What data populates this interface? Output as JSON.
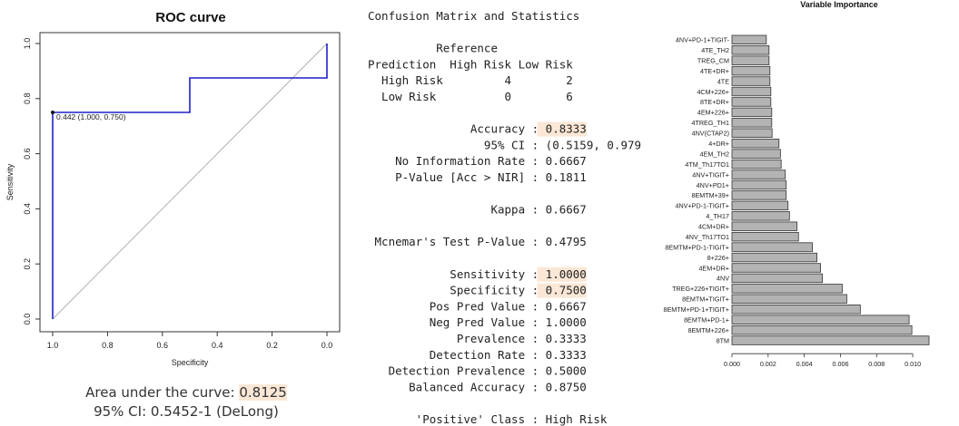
{
  "chart_data": [
    {
      "type": "line",
      "title": "ROC curve",
      "xlabel": "Specificity",
      "ylabel": "Sensitivity",
      "xlim": [
        1.0,
        0.0
      ],
      "ylim": [
        0.0,
        1.0
      ],
      "x_reversed": true,
      "xticks": [
        "1.0",
        "0.8",
        "0.6",
        "0.4",
        "0.2",
        "0.0"
      ],
      "yticks": [
        "0.0",
        "0.2",
        "0.4",
        "0.6",
        "0.8",
        "1.0"
      ],
      "xtick_values": [
        1.0,
        0.8,
        0.6,
        0.4,
        0.2,
        0.0
      ],
      "ytick_values": [
        0.0,
        0.2,
        0.4,
        0.6,
        0.8,
        1.0
      ],
      "series": [
        {
          "color": "#1f1fcc",
          "points": [
            [
              1.0,
              0.0
            ],
            [
              1.0,
              0.75
            ],
            [
              0.5,
              0.75
            ],
            [
              0.5,
              0.875
            ],
            [
              0.0,
              0.875
            ],
            [
              0.0,
              1.0
            ]
          ]
        }
      ],
      "reference_line": [
        [
          1.0,
          0.0
        ],
        [
          0.0,
          1.0
        ]
      ],
      "annotation": {
        "text": "0.442 (1.000, 0.750)",
        "x": 1.0,
        "y": 0.75
      },
      "grid": false
    },
    {
      "type": "bar",
      "orientation": "horizontal",
      "title": "Variable Importance",
      "bar_color": "#b3b3b3",
      "xlim": [
        0,
        0.011
      ],
      "xticks": [
        "0.000",
        "0.002",
        "0.004",
        "0.006",
        "0.008",
        "0.010"
      ],
      "xtick_values": [
        0.0,
        0.002,
        0.004,
        0.006,
        0.008,
        0.01
      ],
      "categories": [
        "4NV+PD-1+TIGIT-",
        "4TE_TH2",
        "TREG_CM",
        "4TE+DR+",
        "4TE",
        "4CM+226+",
        "8TE+DR+",
        "4EM+226+",
        "4TREG_TH1",
        "4NV(CTAP2)",
        "4+DR+",
        "4EM_TH2",
        "4TM_Th17TO1",
        "4NV+TIGIT+",
        "4NV+PD1+",
        "8EMTM+39+",
        "4NV+PD-1-TIGIT+",
        "4_TH17",
        "4CM+DR+",
        "4NV_Th17TO1",
        "8EMTM+PD-1-TIGIT+",
        "8+226+",
        "4EM+DR+",
        "4NV",
        "TREG+226+TIGIT+",
        "8EMTM+TIGIT+",
        "8EMTM+PD-1+TIGIT+",
        "8EMTM+PD-1+",
        "8EMTM+226+",
        "8TM"
      ],
      "values": [
        0.0019,
        0.00205,
        0.00205,
        0.0021,
        0.0021,
        0.00215,
        0.00215,
        0.0022,
        0.0022,
        0.00222,
        0.0026,
        0.00268,
        0.00272,
        0.00295,
        0.003,
        0.003,
        0.0031,
        0.00318,
        0.0036,
        0.00368,
        0.00445,
        0.0047,
        0.0049,
        0.005,
        0.0061,
        0.00635,
        0.0071,
        0.0098,
        0.00995,
        0.0109
      ]
    }
  ],
  "stats": {
    "lines": [
      {
        "text": "Confusion Matrix and Statistics"
      },
      {
        "text": ""
      },
      {
        "text": "          Reference"
      },
      {
        "text": "Prediction  High Risk Low Risk"
      },
      {
        "text": "  High Risk         4        2"
      },
      {
        "text": "  Low Risk          0        6"
      },
      {
        "text": ""
      },
      {
        "text": "               Accuracy : 0.8333",
        "hl": true,
        "hl_start": 25
      },
      {
        "text": "                 95% CI : (0.5159, 0.979"
      },
      {
        "text": "    No Information Rate : 0.6667"
      },
      {
        "text": "    P-Value [Acc > NIR] : 0.1811"
      },
      {
        "text": ""
      },
      {
        "text": "                  Kappa : 0.6667"
      },
      {
        "text": ""
      },
      {
        "text": " Mcnemar's Test P-Value : 0.4795"
      },
      {
        "text": ""
      },
      {
        "text": "            Sensitivity : 1.0000",
        "hl": true,
        "hl_start": 25
      },
      {
        "text": "            Specificity : 0.7500",
        "hl": true,
        "hl_start": 25
      },
      {
        "text": "         Pos Pred Value : 0.6667"
      },
      {
        "text": "         Neg Pred Value : 1.0000"
      },
      {
        "text": "             Prevalence : 0.3333"
      },
      {
        "text": "         Detection Rate : 0.3333"
      },
      {
        "text": "   Detection Prevalence : 0.5000"
      },
      {
        "text": "      Balanced Accuracy : 0.8750"
      },
      {
        "text": ""
      },
      {
        "text": "       'Positive' Class : High Risk"
      }
    ]
  },
  "auc": {
    "label": "Area under the curve: ",
    "value": "0.8125",
    "ci": "95% CI: 0.5452-1 (DeLong)"
  }
}
